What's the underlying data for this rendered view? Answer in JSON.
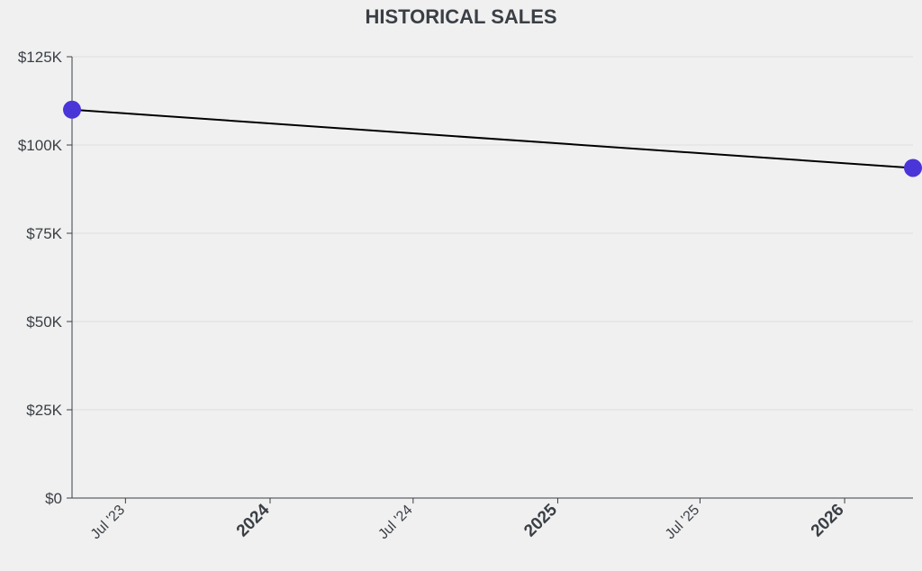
{
  "chart_data": {
    "type": "line",
    "title": "HISTORICAL SALES",
    "xlabel": "",
    "ylabel": "",
    "y_ticks": [
      "$0",
      "$25K",
      "$50K",
      "$75K",
      "$100K",
      "$125K"
    ],
    "y_tick_values": [
      0,
      25000,
      50000,
      75000,
      100000,
      125000
    ],
    "ylim": [
      0,
      125000
    ],
    "xlim": [
      "2023-04-24",
      "2026-03-29"
    ],
    "x_ticks": [
      {
        "label": "Jul '23",
        "date": "2023-07-01",
        "major": false
      },
      {
        "label": "2024",
        "date": "2024-01-01",
        "major": true
      },
      {
        "label": "Jul '24",
        "date": "2024-07-01",
        "major": false
      },
      {
        "label": "2025",
        "date": "2025-01-01",
        "major": true
      },
      {
        "label": "Jul '25",
        "date": "2025-07-01",
        "major": false
      },
      {
        "label": "2026",
        "date": "2026-01-01",
        "major": true
      }
    ],
    "grid": true,
    "series": [
      {
        "color": "#000000",
        "marker_color": "#4a35d8",
        "points": [
          {
            "x": "2023-04-24",
            "y": 110000
          },
          {
            "x": "2026-03-29",
            "y": 93500
          }
        ]
      }
    ]
  }
}
